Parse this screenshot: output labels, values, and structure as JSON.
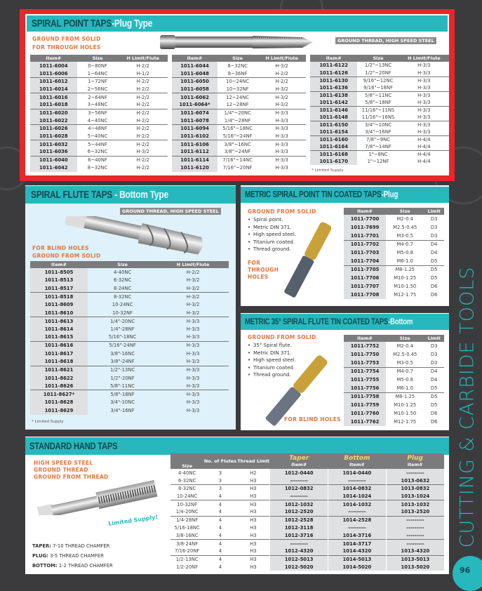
{
  "side_title": "CUTTING & CARBIDE TOOLS",
  "page_number": "96",
  "colors": {
    "accent": "#27b8bd",
    "highlight": "#e8262b",
    "orange": "#e8743b"
  },
  "spiral_point": {
    "title": "SPIRAL POINT TAPS",
    "subtitle": "-Plug Type",
    "notes": [
      "GROUND FROM SOLID",
      "FOR THROUGH HOLES"
    ],
    "tag": "GROUND THREAD, HIGH SPEED STEEL",
    "headers": [
      "Item#",
      "Size",
      "H Limit/Flute"
    ],
    "footnote": "* Limited Supply",
    "tables": [
      [
        [
          "1011-6004",
          "0~80NF",
          "H-2/2"
        ],
        [
          "1011-6006",
          "1~64NC",
          "H-1/2"
        ],
        [
          "1011-6012",
          "1~72NF",
          "H-2/2"
        ],
        [
          "1011-6014",
          "2~56NC",
          "H-2/2"
        ],
        [
          "1011-6016",
          "2~64NF",
          "H-2/2"
        ],
        [
          "1011-6018",
          "3~48NC",
          "H-2/2"
        ],
        [
          "1011-6020",
          "3~56NF",
          "H-2/2"
        ],
        [
          "1011-6022",
          "4~40NC",
          "H-2/2"
        ],
        [
          "1011-6026",
          "4~48NF",
          "H-2/2"
        ],
        [
          "1011-6028",
          "5~40NC",
          "H-2/2"
        ],
        [
          "1011-6032",
          "5~44NF",
          "H-2/2"
        ],
        [
          "1011-6036",
          "6~32NC",
          "H-3/2"
        ],
        [
          "1011-6040",
          "6~40NF",
          "H-2/2"
        ],
        [
          "1011-6042",
          "8~32NC",
          "H-2/2"
        ]
      ],
      [
        [
          "1011-6044",
          "8~32NC",
          "H-3/2"
        ],
        [
          "1011-6048",
          "8~36NF",
          "H-2/2"
        ],
        [
          "1011-6050",
          "10~24NC",
          "H-2/2"
        ],
        [
          "1011-6058",
          "10~32NF",
          "H-3/2"
        ],
        [
          "1011-6062",
          "12~24NC",
          "H-3/2"
        ],
        [
          "1011-6064*",
          "12~28NF",
          "H-3/2"
        ],
        [
          "1011-6074",
          "1/4\"~20NC",
          "H-3/3"
        ],
        [
          "1011-6078",
          "1/4\"~28NF",
          "H-3/3"
        ],
        [
          "1011-6094",
          "5/16\"~18NC",
          "H-3/3"
        ],
        [
          "1011-6102",
          "5/16\"~24NF",
          "H-3/3"
        ],
        [
          "1011-6106",
          "3/8\"~16NC",
          "H-3/3"
        ],
        [
          "1011-6112",
          "3/8\"~24NF",
          "H-3/3"
        ],
        [
          "1011-6114",
          "7/16\"~14NC",
          "H-3/3"
        ],
        [
          "1011-6120",
          "7/16\"~20NF",
          "H-3/3"
        ]
      ],
      [
        [
          "1011-6122",
          "1/2\"~13NC",
          "H-3/3"
        ],
        [
          "1011-6126",
          "1/2\"~20NF",
          "H-3/3"
        ],
        [
          "1011-6130",
          "9/16\"~12NC",
          "H-3/3"
        ],
        [
          "1011-6136",
          "9/16\"~18NF",
          "H-3/3"
        ],
        [
          "1011-6138",
          "5/8\"~11NC",
          "H-3/3"
        ],
        [
          "1011-6142",
          "5/8\"~18NF",
          "H-3/3"
        ],
        [
          "1011-6146",
          "11/16\"~11NS",
          "H-3/3"
        ],
        [
          "1011-6148",
          "11/16\"~16NS",
          "H-3/3"
        ],
        [
          "1011-6150",
          "3/4\"~10NC",
          "H-3/3"
        ],
        [
          "1011-6154",
          "3/4\"~16NF",
          "H-3/3"
        ],
        [
          "1011-6160",
          "7/8\"~9NC",
          "H-4/4"
        ],
        [
          "1011-6164",
          "7/8\"~14NF",
          "H-4/4"
        ],
        [
          "1011-6168",
          "1\"~8NC",
          "H-4/4"
        ],
        [
          "1011-6170",
          "1\"~12NF",
          "H-4/4"
        ]
      ]
    ]
  },
  "spiral_flute": {
    "title": "SPIRAL FLUTE TAPS",
    "subtitle": " - Bottom Type",
    "tag": "GROUND THREAD, HIGH SPEED STEEL",
    "notes": [
      "FOR BLIND HOLES",
      "GROUND FROM SOLID"
    ],
    "headers": [
      "Item#",
      "Size",
      "H Limit/Flute"
    ],
    "footnote": "* Limited Supply",
    "rows": [
      [
        "1011-8505",
        "4-40NC",
        "H-2/2"
      ],
      [
        "1011-8513",
        "6-32NC",
        "H-3/2"
      ],
      [
        "1011-8517",
        "8-24NC",
        "H-3/2"
      ],
      [
        "1011-8518",
        "8-32NC",
        "H-3/2"
      ],
      [
        "1011-8609",
        "10-24NC",
        "H-3/2"
      ],
      [
        "1011-8610",
        "10-32NF",
        "H-3/2"
      ],
      [
        "1011-8613",
        "1/4\"-20NC",
        "H-3/3"
      ],
      [
        "1011-8614",
        "1/4\"-28NF",
        "H-3/3"
      ],
      [
        "1011-8615",
        "5/16\"-18NC",
        "H-3/3"
      ],
      [
        "1011-8616",
        "5/16\"-24NF",
        "H-3/3"
      ],
      [
        "1011-8617",
        "3/8\"-16NC",
        "H-3/3"
      ],
      [
        "1011-8618",
        "3/8\"-24NF",
        "H-3/3"
      ],
      [
        "1011-8621",
        "1/2\"-13NC",
        "H-3/3"
      ],
      [
        "1011-8622",
        "1/2\"-20NF",
        "H-3/3"
      ],
      [
        "1011-8626",
        "5/8\"-11NC",
        "H-3/3"
      ],
      [
        "1011-8627*",
        "5/8\"-18NF",
        "H-3/3"
      ],
      [
        "1011-8628",
        "3/4\"-10NC",
        "H-3/3"
      ],
      [
        "1011-8629",
        "3/4\"-16NF",
        "H-3/3"
      ]
    ]
  },
  "metric_plug": {
    "title": "METRIC SPIRAL POINT TIN COATED TAPS",
    "subtitle": "-Plug",
    "ground": "GROUND FROM SOLID",
    "bullets": [
      "Spiral point.",
      "Metric DIN 371.",
      "High speed steel.",
      "Titanium coated.",
      "Thread ground."
    ],
    "holes": [
      "FOR",
      "THROUGH",
      "HOLES"
    ],
    "headers": [
      "Item#",
      "Size",
      "Limit"
    ],
    "rows": [
      [
        "1011-7700",
        "M2-0.4",
        "D3"
      ],
      [
        "1011-7699",
        "M2.5-0.45",
        "D3"
      ],
      [
        "1011-7701",
        "M3-0.5",
        "D3"
      ],
      [
        "1011-7702",
        "M4-0.7",
        "D4"
      ],
      [
        "1011-7703",
        "M5-0.8",
        "D4"
      ],
      [
        "1011-7704",
        "M6-1.0",
        "D5"
      ],
      [
        "1011-7705",
        "M8-1.25",
        "D5"
      ],
      [
        "1011-7706",
        "M10-1.25",
        "D5"
      ],
      [
        "1011-7707",
        "M10-1.50",
        "D6"
      ],
      [
        "1011-7708",
        "M12-1.75",
        "D6"
      ]
    ]
  },
  "metric_bottom": {
    "title": "METRIC 35° SPIRAL FLUTE TIN COATED TAPS",
    "subtitle": "-Bottom",
    "ground": "GROUND FROM SOLID",
    "bullets": [
      "35° Spiral flute.",
      "Metric DIN 371.",
      "High speed steel.",
      "Titanium coated.",
      "Thread ground."
    ],
    "holes": "FOR BLIND HOLES",
    "headers": [
      "Item#",
      "Size",
      "Limit"
    ],
    "rows": [
      [
        "1011-7752",
        "M2-0.4",
        "D3"
      ],
      [
        "1011-7750",
        "M2.5-0.45",
        "D3"
      ],
      [
        "1011-7753",
        "M3-0.5",
        "D3"
      ],
      [
        "1011-7754",
        "M4-0.7",
        "D4"
      ],
      [
        "1011-7755",
        "M5-0.8",
        "D4"
      ],
      [
        "1011-7756",
        "M6-1.0",
        "D5"
      ],
      [
        "1011-7758",
        "M8-1.25",
        "D5"
      ],
      [
        "1011-7759",
        "M10-1.25",
        "D5"
      ],
      [
        "1011-7760",
        "M10-1.50",
        "D6"
      ],
      [
        "1011-7762",
        "M12-1.75",
        "D6"
      ]
    ]
  },
  "hand_taps": {
    "title": "STANDARD HAND TAPS",
    "notes": [
      "HIGH SPEED STEEL",
      "GROUND THREAD",
      "GROUND FROM THREAD"
    ],
    "limited": "Limited Supply!",
    "chamfers": [
      {
        "k": "TAPER:",
        "v": "7-10 THREAD CHAMFER"
      },
      {
        "k": "PLUG:",
        "v": "3-5 THREAD CHAMFER"
      },
      {
        "k": "BOTTOM:",
        "v": "1-2 THREAD CHAMFER"
      }
    ],
    "headers": {
      "size": "Size",
      "flutes": "No. of Flutes",
      "limit": "Thread Limit",
      "taper": "Taper",
      "bottom": "Bottom",
      "plug": "Plug",
      "item": "Item#"
    },
    "rows": [
      [
        "4-40NC",
        "3",
        "H2",
        "1012-0440",
        "1014-0440",
        "---------"
      ],
      [
        "6-32NC",
        "3",
        "H3",
        "---------",
        "---------",
        "1013-0632"
      ],
      [
        "8-32NC",
        "3",
        "H3",
        "1012-0832",
        "1014-0832",
        "1013-0832"
      ],
      [
        "10-24NC",
        "4",
        "H3",
        "---------",
        "1014-1024",
        "1013-1024"
      ],
      [
        "10-32NF",
        "4",
        "H3",
        "1012-1032",
        "1014-1032",
        "1013-1032"
      ],
      [
        "1/4-20NC",
        "4",
        "H3",
        "1012-2520",
        "---------",
        "1013-2520"
      ],
      [
        "1/4-28NF",
        "4",
        "H3",
        "1012-2528",
        "1014-2528",
        "---------"
      ],
      [
        "5/16-18NC",
        "4",
        "H3",
        "1012-3118",
        "---------",
        "---------"
      ],
      [
        "3/8-16NC",
        "4",
        "H3",
        "1012-3716",
        "1014-3716",
        "---------"
      ],
      [
        "3/8-24NF",
        "4",
        "H3",
        "---------",
        "1014-3717",
        "---------"
      ],
      [
        "7/16-20NF",
        "4",
        "H3",
        "1012-4320",
        "1014-4320",
        "1013-4320"
      ],
      [
        "1/2-13NC",
        "4",
        "H3",
        "1012-5013",
        "1014-5013",
        "1013-5013"
      ],
      [
        "1/2-20NF",
        "4",
        "H3",
        "1012-5020",
        "1014-5020",
        "1013-5020"
      ]
    ]
  }
}
